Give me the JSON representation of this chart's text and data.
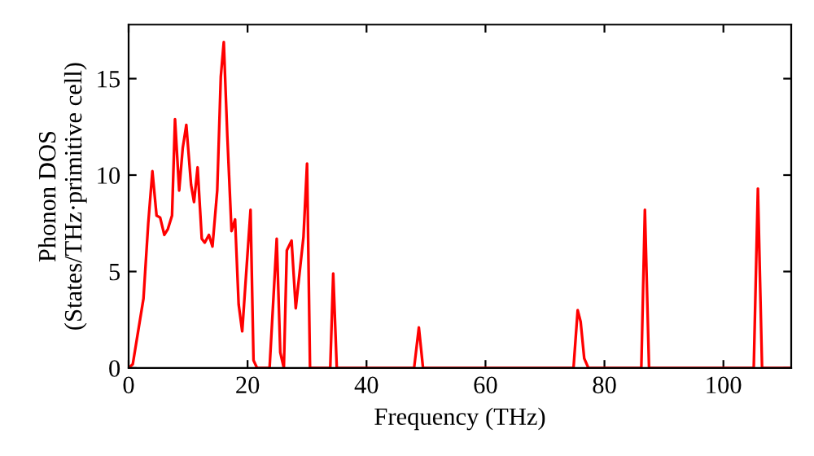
{
  "chart_data": {
    "type": "line",
    "xlabel": "Frequency (THz)",
    "ylabel": "Phonon DOS\n(States/THz·primitive cell)",
    "x": [
      0,
      0.7,
      2.5,
      3.3,
      4,
      4.7,
      5.3,
      6,
      6.6,
      7.3,
      7.8,
      8.5,
      9.1,
      9.7,
      10.5,
      11,
      11.6,
      12.3,
      12.8,
      13.5,
      14.1,
      14.9,
      15.5,
      16,
      16.6,
      17.3,
      17.9,
      18.5,
      19.1,
      20.5,
      21,
      21.6,
      23.7,
      24.9,
      25.5,
      26.1,
      26.6,
      27.4,
      28.1,
      29.4,
      30,
      30.5,
      33.9,
      34.4,
      35,
      48,
      48.8,
      49.5,
      74.8,
      75.5,
      76,
      76.6,
      77.3,
      86.2,
      86.8,
      87.5,
      105.1,
      105.8,
      106.5,
      111.4
    ],
    "series": [
      {
        "color": "#ff0000",
        "values": [
          0,
          0.2,
          3.6,
          7.5,
          10.2,
          7.9,
          7.8,
          6.9,
          7.2,
          7.9,
          12.9,
          9.2,
          11.4,
          12.6,
          9.5,
          8.6,
          10.4,
          6.7,
          6.5,
          6.9,
          6.3,
          9.2,
          15.1,
          16.9,
          12,
          7.1,
          7.7,
          3.3,
          1.9,
          8.2,
          0.4,
          0,
          0,
          6.7,
          0.8,
          0,
          6.1,
          6.6,
          3.1,
          6.8,
          10.6,
          0,
          0,
          4.9,
          0,
          0,
          2.1,
          0,
          0,
          3.0,
          2.4,
          0.5,
          0,
          0,
          8.2,
          0,
          0,
          9.3,
          0,
          0
        ]
      }
    ],
    "xlim": [
      0,
      111.4
    ],
    "ylim": [
      0,
      17.8
    ],
    "xticks": [
      0,
      20,
      40,
      60,
      80,
      100
    ],
    "yticks": [
      0,
      5,
      10,
      15
    ],
    "grid": false,
    "legend": false,
    "marker": "none",
    "line_style": "solid"
  }
}
